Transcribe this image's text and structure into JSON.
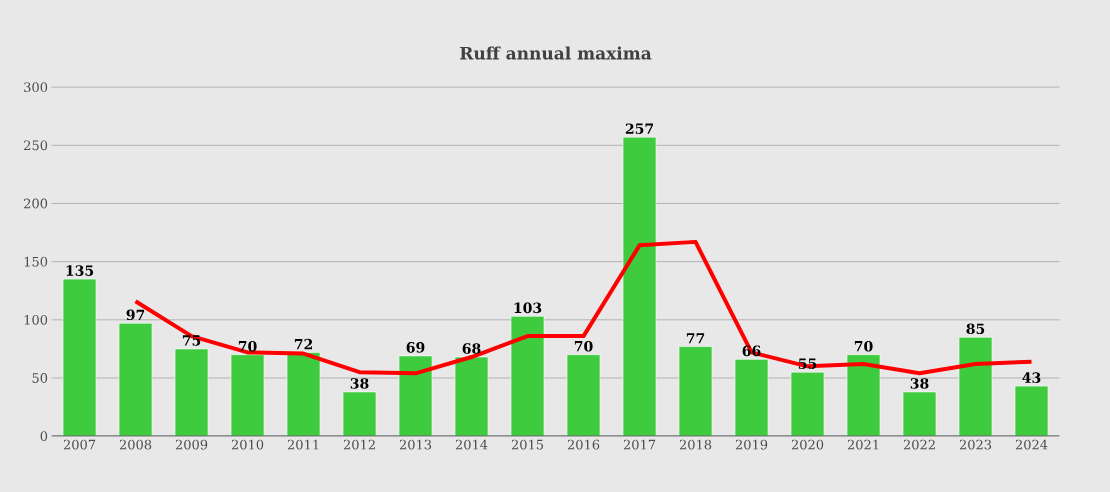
{
  "chart_data": {
    "type": "bar",
    "title": "Ruff annual maxima",
    "categories": [
      "2007",
      "2008",
      "2009",
      "2010",
      "2011",
      "2012",
      "2013",
      "2014",
      "2015",
      "2016",
      "2017",
      "2018",
      "2019",
      "2020",
      "2021",
      "2022",
      "2023",
      "2024"
    ],
    "series": [
      {
        "color": "#3ecc3e",
        "values": [
          135,
          97,
          75,
          70,
          72,
          38,
          69,
          68,
          103,
          70,
          257,
          77,
          66,
          55,
          70,
          38,
          85,
          43
        ],
        "value_labels": [
          "135",
          "97",
          "75",
          "70",
          "72",
          "38",
          "69",
          "68",
          "103",
          "70",
          "257",
          "77",
          "66",
          "55",
          "70",
          "38",
          "85",
          "43"
        ]
      },
      {
        "type": "line",
        "color": "#ff0000",
        "line_style": "solid",
        "marker": "none",
        "values": [
          null,
          116,
          86,
          72,
          71,
          55,
          54,
          68,
          86,
          86,
          164,
          167,
          72,
          60,
          62,
          54,
          62,
          64
        ]
      }
    ],
    "ylim": [
      0,
      300
    ],
    "yticks": [
      0,
      50,
      100,
      150,
      200,
      250,
      300
    ],
    "grid": "y"
  }
}
